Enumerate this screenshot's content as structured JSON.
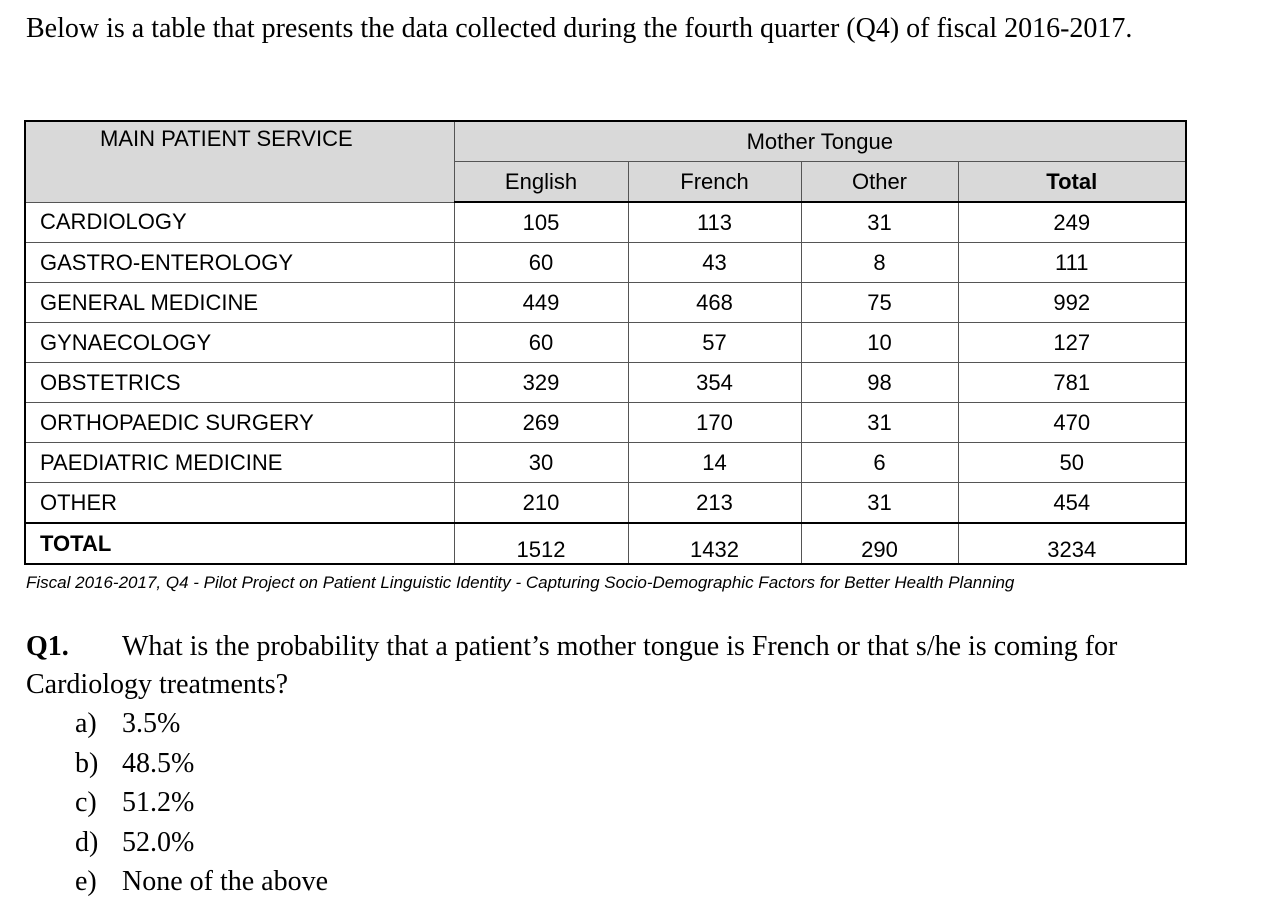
{
  "intro": "Below is a table that presents the data collected during the fourth quarter (Q4) of fiscal 2016-2017.",
  "table": {
    "header": "MAIN PATIENT SERVICE",
    "group_header": "Mother Tongue",
    "columns": [
      "English",
      "French",
      "Other",
      "Total"
    ],
    "rows": [
      [
        "CARDIOLOGY",
        105,
        113,
        31,
        249
      ],
      [
        "GASTRO-ENTEROLOGY",
        60,
        43,
        8,
        111
      ],
      [
        "GENERAL MEDICINE",
        449,
        468,
        75,
        992
      ],
      [
        "GYNAECOLOGY",
        60,
        57,
        10,
        127
      ],
      [
        "OBSTETRICS",
        329,
        354,
        98,
        781
      ],
      [
        "ORTHOPAEDIC SURGERY",
        269,
        170,
        31,
        470
      ],
      [
        "PAEDIATRIC MEDICINE",
        30,
        14,
        6,
        50
      ],
      [
        "OTHER",
        210,
        213,
        31,
        454
      ]
    ],
    "total_row": [
      "TOTAL",
      1512,
      1432,
      290,
      3234
    ]
  },
  "caption": "Fiscal 2016-2017, Q4 - Pilot Project on Patient Linguistic Identity - Capturing Socio-Demographic Factors for Better Health Planning",
  "question": {
    "label": "Q1.",
    "text": "What is the probability that a patient’s mother tongue is French or that s/he is coming for Cardiology treatments?",
    "options": [
      {
        "letter": "a)",
        "text": "3.5%"
      },
      {
        "letter": "b)",
        "text": "48.5%"
      },
      {
        "letter": "c)",
        "text": "51.2%"
      },
      {
        "letter": "d)",
        "text": "52.0%"
      },
      {
        "letter": "e)",
        "text": "None of the above"
      }
    ]
  }
}
